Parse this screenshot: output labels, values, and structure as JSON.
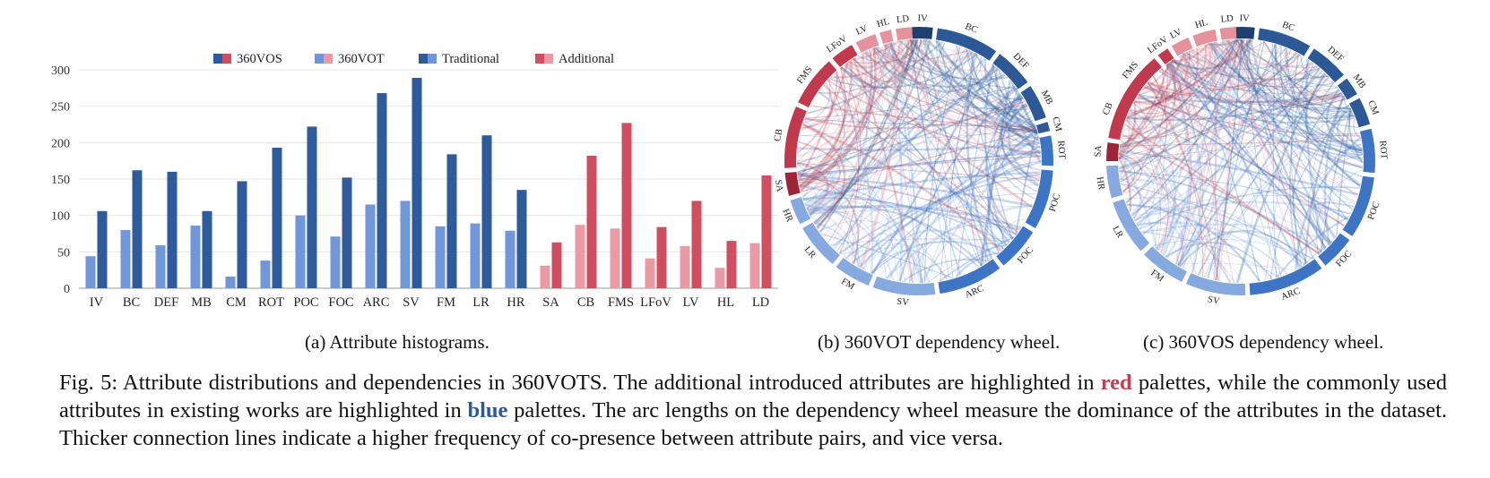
{
  "colors": {
    "vos_traditional": "#2f5b9c",
    "vot_traditional": "#6f97da",
    "vos_additional": "#cf4f60",
    "vot_additional": "#e99aa3",
    "grid": "#e4e4e4",
    "caption_red": "#c0404f",
    "caption_blue": "#2b5a9a"
  },
  "chart_data": [
    {
      "type": "bar",
      "categories": [
        "IV",
        "BC",
        "DEF",
        "MB",
        "CM",
        "ROT",
        "POC",
        "FOC",
        "ARC",
        "SV",
        "FM",
        "LR",
        "HR",
        "SA",
        "CB",
        "FMS",
        "LFoV",
        "LV",
        "HL",
        "LD"
      ],
      "group": [
        "traditional",
        "traditional",
        "traditional",
        "traditional",
        "traditional",
        "traditional",
        "traditional",
        "traditional",
        "traditional",
        "traditional",
        "traditional",
        "traditional",
        "traditional",
        "additional",
        "additional",
        "additional",
        "additional",
        "additional",
        "additional",
        "additional"
      ],
      "series": [
        {
          "name": "360VOT",
          "values": [
            44,
            80,
            59,
            86,
            16,
            38,
            100,
            71,
            115,
            120,
            85,
            89,
            79,
            31,
            87,
            82,
            41,
            58,
            28,
            62
          ]
        },
        {
          "name": "360VOS",
          "values": [
            106,
            162,
            160,
            106,
            147,
            193,
            222,
            152,
            268,
            289,
            184,
            210,
            135,
            63,
            182,
            227,
            84,
            120,
            65,
            155
          ]
        }
      ],
      "legend": [
        "360VOS",
        "360VOT",
        "Traditional",
        "Additional"
      ],
      "legend_placement": "top",
      "yticks": [
        0,
        50,
        100,
        150,
        200,
        250,
        300
      ],
      "ylim": [
        0,
        300
      ],
      "grid": true,
      "xlabel": "",
      "ylabel": ""
    },
    {
      "type": "dependency-wheel",
      "labels": [
        "IV",
        "BC",
        "DEF",
        "MB",
        "CM",
        "ROT",
        "POC",
        "FOC",
        "ARC",
        "SV",
        "FM",
        "LR",
        "HR",
        "SA",
        "CB",
        "FMS",
        "LFoV",
        "LV",
        "HL",
        "LD"
      ]
    },
    {
      "type": "dependency-wheel",
      "labels": [
        "IV",
        "BC",
        "DEF",
        "MB",
        "CM",
        "ROT",
        "POC",
        "FOC",
        "ARC",
        "SV",
        "FM",
        "LR",
        "HR",
        "SA",
        "CB",
        "FMS",
        "LFoV",
        "LV",
        "HL",
        "LD"
      ]
    }
  ],
  "subcaptions": {
    "a": "(a) Attribute histograms.",
    "b": "(b) 360VOT dependency wheel.",
    "c": "(c) 360VOS dependency wheel."
  },
  "caption": {
    "part1": "Fig. 5: Attribute distributions and dependencies in 360VOTS. The additional introduced attributes are highlighted in ",
    "red_word": "red",
    "part2": " palettes, while the commonly used attributes in existing works are highlighted in ",
    "blue_word": "blue",
    "part3": " palettes. The arc lengths on the dependency wheel measure the dominance of the attributes in the dataset. Thicker connection lines indicate a higher frequency of co-presence between attribute pairs, and vice versa."
  }
}
